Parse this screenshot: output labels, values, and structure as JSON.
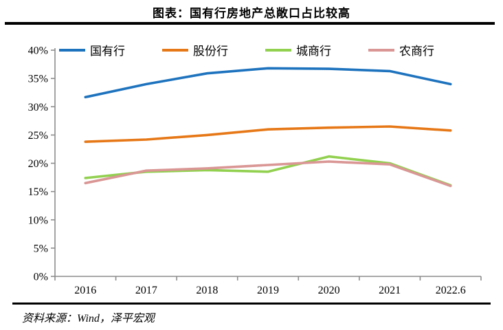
{
  "header": {
    "title": "图表：国有行房地产总敞口占比较高"
  },
  "footer": {
    "source": "资料来源：Wind，泽平宏观"
  },
  "colors": {
    "axis": "#8c8c8c",
    "text": "#000000",
    "rule": "#000000"
  },
  "chart_data": {
    "type": "line",
    "title": "图表：国有行房地产总敞口占比较高",
    "categories": [
      "2016",
      "2017",
      "2018",
      "2019",
      "2020",
      "2021",
      "2022.6"
    ],
    "series": [
      {
        "name": "国有行",
        "color": "#1e73be",
        "values": [
          31.7,
          34.0,
          35.9,
          36.8,
          36.7,
          36.3,
          34.0
        ]
      },
      {
        "name": "股份行",
        "color": "#e67817",
        "values": [
          23.8,
          24.2,
          25.0,
          26.0,
          26.3,
          26.5,
          25.8
        ]
      },
      {
        "name": "城商行",
        "color": "#92d050",
        "values": [
          17.4,
          18.5,
          18.8,
          18.5,
          21.2,
          20.0,
          16.1
        ]
      },
      {
        "name": "农商行",
        "color": "#d99694",
        "values": [
          16.5,
          18.7,
          19.1,
          19.7,
          20.3,
          19.8,
          16.0
        ]
      }
    ],
    "xlabel": "",
    "ylabel": "",
    "ylim": [
      0,
      40
    ],
    "ytick_values": [
      0,
      5,
      10,
      15,
      20,
      25,
      30,
      35,
      40
    ],
    "ytick_labels": [
      "0%",
      "5%",
      "10%",
      "15%",
      "20%",
      "25%",
      "30%",
      "35%",
      "40%"
    ],
    "grid": false,
    "legend_position": "top"
  }
}
